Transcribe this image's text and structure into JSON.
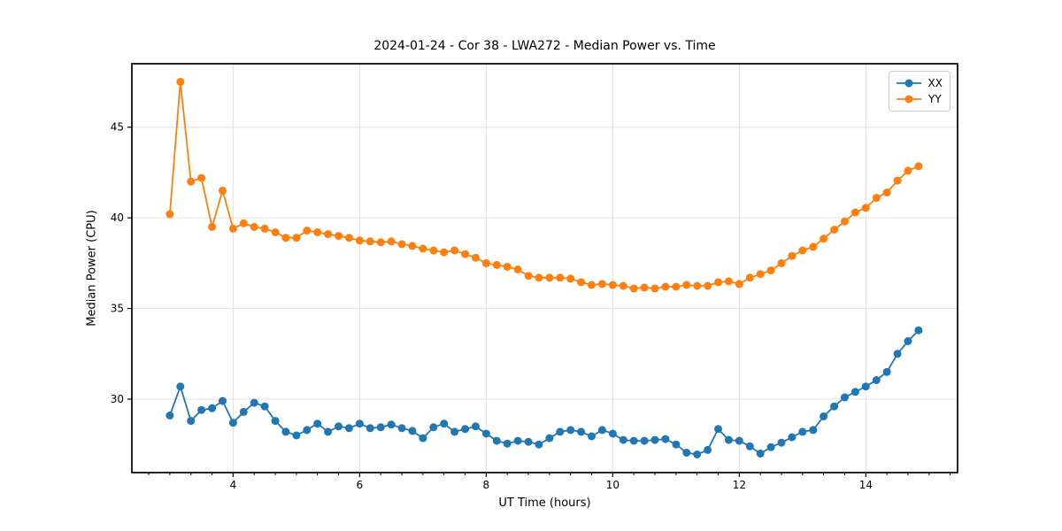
{
  "chart_data": {
    "type": "line",
    "title": "2024-01-24 - Cor 38 - LWA272 - Median Power vs. Time",
    "xlabel": "UT Time (hours)",
    "ylabel": "Median Power (CPU)",
    "xlim": [
      2.4,
      15.45
    ],
    "ylim": [
      25.95,
      48.5
    ],
    "xticks": [
      4,
      6,
      8,
      10,
      12,
      14
    ],
    "yticks": [
      30,
      35,
      40,
      45
    ],
    "x_minor_step": 0.3333333,
    "grid": true,
    "grid_color": "#e0e0e0",
    "legend_position": "upper right",
    "x": [
      3.0,
      3.167,
      3.333,
      3.5,
      3.667,
      3.833,
      4.0,
      4.167,
      4.333,
      4.5,
      4.667,
      4.833,
      5.0,
      5.167,
      5.333,
      5.5,
      5.667,
      5.833,
      6.0,
      6.167,
      6.333,
      6.5,
      6.667,
      6.833,
      7.0,
      7.167,
      7.333,
      7.5,
      7.667,
      7.833,
      8.0,
      8.167,
      8.333,
      8.5,
      8.667,
      8.833,
      9.0,
      9.167,
      9.333,
      9.5,
      9.667,
      9.833,
      10.0,
      10.167,
      10.333,
      10.5,
      10.667,
      10.833,
      11.0,
      11.167,
      11.333,
      11.5,
      11.667,
      11.833,
      12.0,
      12.167,
      12.333,
      12.5,
      12.667,
      12.833,
      13.0,
      13.167,
      13.333,
      13.5,
      13.667,
      13.833,
      14.0,
      14.167,
      14.333,
      14.5,
      14.667,
      14.833
    ],
    "series": [
      {
        "name": "XX",
        "color": "#1f77b4",
        "values": [
          29.1,
          30.7,
          28.8,
          29.4,
          29.5,
          29.9,
          28.7,
          29.3,
          29.8,
          29.6,
          28.8,
          28.2,
          28.0,
          28.3,
          28.65,
          28.2,
          28.5,
          28.4,
          28.65,
          28.4,
          28.45,
          28.6,
          28.4,
          28.25,
          27.85,
          28.45,
          28.65,
          28.2,
          28.35,
          28.5,
          28.1,
          27.7,
          27.55,
          27.7,
          27.65,
          27.5,
          27.85,
          28.2,
          28.3,
          28.2,
          27.95,
          28.3,
          28.1,
          27.75,
          27.7,
          27.7,
          27.75,
          27.8,
          27.5,
          27.05,
          26.95,
          27.2,
          28.35,
          27.75,
          27.7,
          27.4,
          27.0,
          27.35,
          27.6,
          27.9,
          28.2,
          28.3,
          29.05,
          29.6,
          30.1,
          30.4,
          30.7,
          31.05,
          31.5,
          32.5,
          33.2,
          33.8
        ]
      },
      {
        "name": "YY",
        "color": "#ff7f0e",
        "values": [
          40.2,
          47.5,
          42.0,
          42.2,
          39.5,
          41.5,
          39.4,
          39.7,
          39.5,
          39.4,
          39.2,
          38.9,
          38.9,
          39.3,
          39.2,
          39.1,
          39.0,
          38.9,
          38.75,
          38.7,
          38.65,
          38.7,
          38.55,
          38.45,
          38.3,
          38.2,
          38.1,
          38.2,
          38.0,
          37.8,
          37.5,
          37.4,
          37.3,
          37.15,
          36.8,
          36.7,
          36.7,
          36.7,
          36.65,
          36.45,
          36.3,
          36.35,
          36.3,
          36.25,
          36.1,
          36.15,
          36.1,
          36.2,
          36.2,
          36.3,
          36.25,
          36.25,
          36.45,
          36.5,
          36.35,
          36.7,
          36.9,
          37.1,
          37.5,
          37.9,
          38.2,
          38.4,
          38.85,
          39.35,
          39.8,
          40.3,
          40.55,
          41.1,
          41.4,
          42.05,
          42.6,
          42.85
        ]
      }
    ]
  }
}
